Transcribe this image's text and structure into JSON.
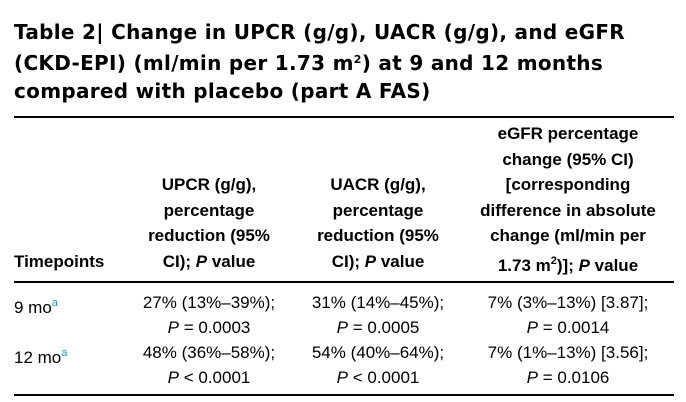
{
  "title": {
    "label": "Table 2",
    "separator": "|",
    "text_part1": "Change in UPCR (g/g), UACR (g/g), and eGFR (CKD-EPI) (ml/min per 1.73 m",
    "superscript": "2",
    "text_part2": ") at 9 and 12 months compared with placebo (part A FAS)"
  },
  "table": {
    "headers": {
      "timepoints": "Timepoints",
      "upcr": {
        "line1": "UPCR (g/g),",
        "line2": "percentage",
        "line3": "reduction (95%",
        "line4_pre": "CI); ",
        "line4_ital": "P",
        "line4_post": " value"
      },
      "uacr": {
        "line1": "UACR (g/g),",
        "line2": "percentage",
        "line3": "reduction (95%",
        "line4_pre": "CI); ",
        "line4_ital": "P",
        "line4_post": " value"
      },
      "egfr": {
        "line1": "eGFR percentage",
        "line2": "change (95% CI)",
        "line3": "[corresponding",
        "line4": "difference in absolute",
        "line5": "change (ml/min per",
        "line6_pre": "1.73 m",
        "line6_sup": "2",
        "line6_mid": ")]; ",
        "line6_ital": "P",
        "line6_post": " value"
      }
    },
    "rows": [
      {
        "timepoint": "9 mo",
        "footnote": "a",
        "upcr": {
          "value": "27% (13%–39%);",
          "p_label": "P",
          "p_value": " = 0.0003"
        },
        "uacr": {
          "value": "31% (14%–45%);",
          "p_label": "P",
          "p_value": " = 0.0005"
        },
        "egfr": {
          "value": "7% (3%–13%) [3.87];",
          "p_label": "P",
          "p_value": " = 0.0014"
        }
      },
      {
        "timepoint": "12 mo",
        "footnote": "a",
        "upcr": {
          "value": "48% (36%–58%);",
          "p_label": "P",
          "p_value": " < 0.0001"
        },
        "uacr": {
          "value": "54% (40%–64%);",
          "p_label": "P",
          "p_value": " < 0.0001"
        },
        "egfr": {
          "value": "7% (1%–13%) [3.56];",
          "p_label": "P",
          "p_value": " = 0.0106"
        }
      }
    ]
  },
  "colors": {
    "footnote_marker": "#1a9bc4",
    "text": "#000000"
  }
}
